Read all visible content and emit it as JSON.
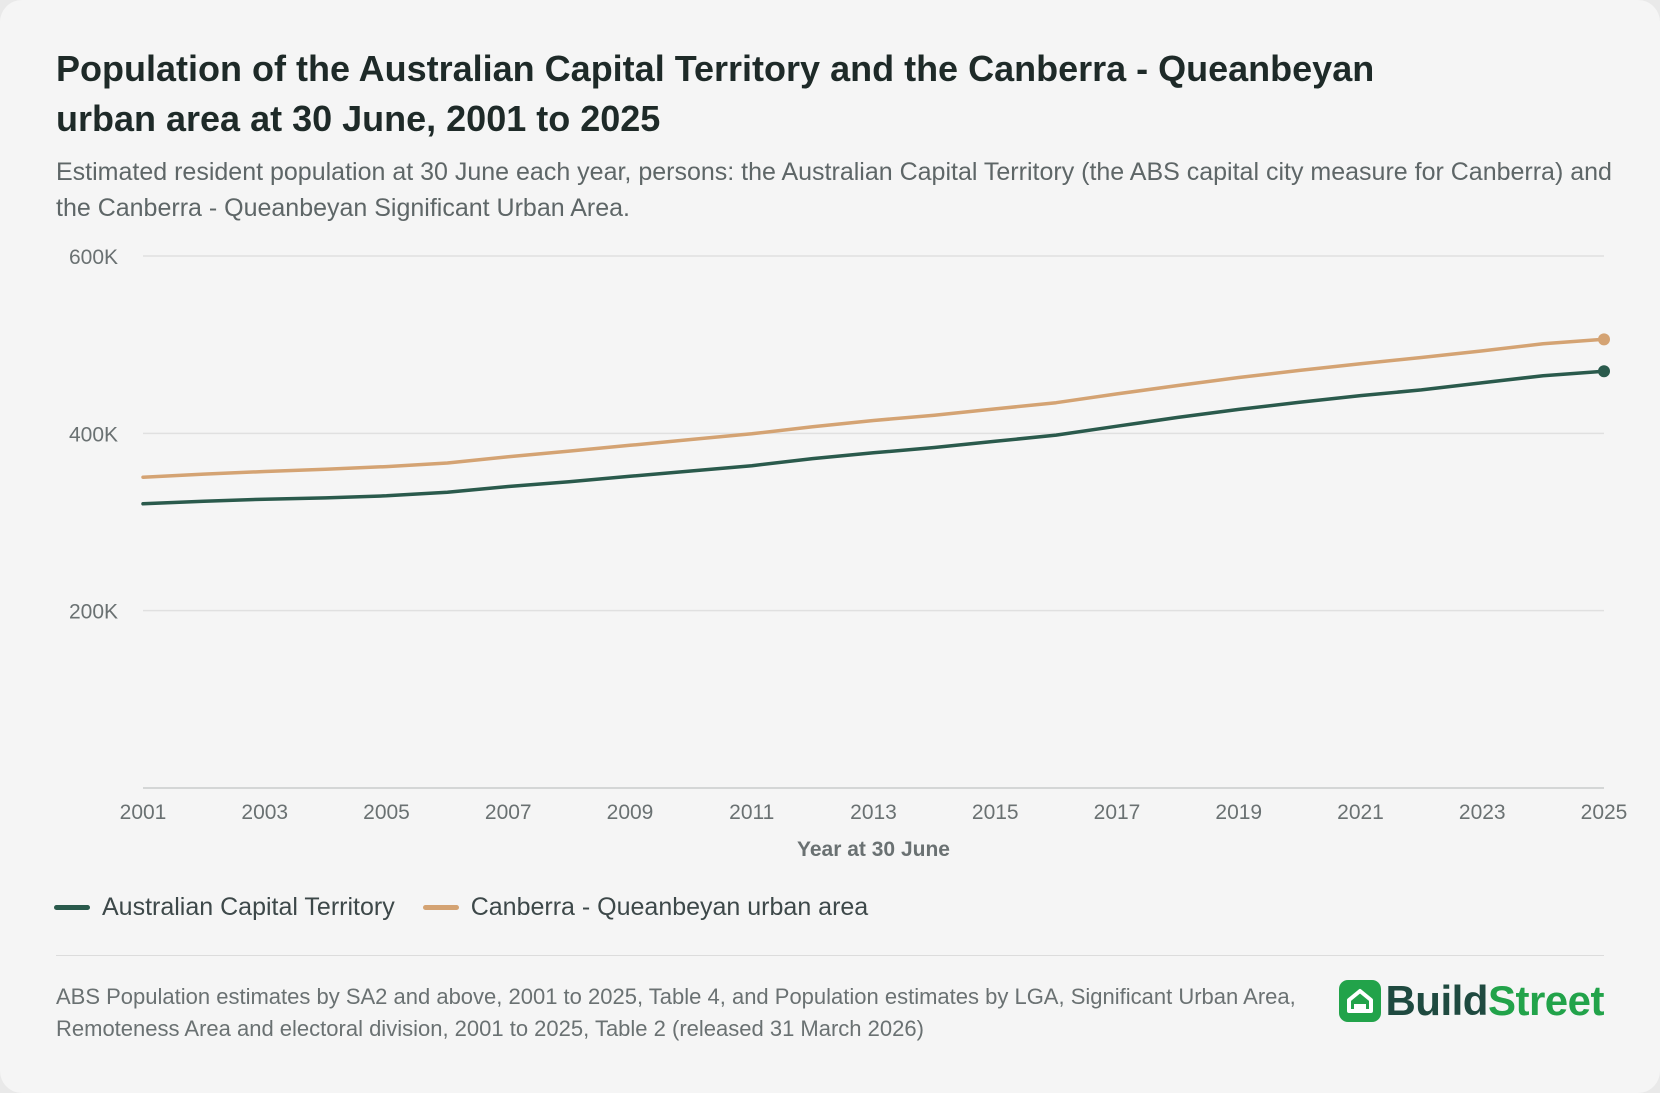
{
  "header": {
    "title": "Population of the Australian Capital Territory and the Canberra - Queanbeyan urban area at 30 June, 2001 to 2025",
    "subtitle": "Estimated resident population at 30 June each year, persons: the Australian Capital Territory (the ABS capital city measure for Canberra) and the Canberra - Queanbeyan Significant Urban Area."
  },
  "chart_data": {
    "type": "line",
    "xlabel": "Year at 30 June",
    "ylabel": "",
    "x": [
      2001,
      2002,
      2003,
      2004,
      2005,
      2006,
      2007,
      2008,
      2009,
      2010,
      2011,
      2012,
      2013,
      2014,
      2015,
      2016,
      2017,
      2018,
      2019,
      2020,
      2021,
      2022,
      2023,
      2024,
      2025
    ],
    "x_ticks": [
      "2001",
      "2003",
      "2005",
      "2007",
      "2009",
      "2011",
      "2013",
      "2015",
      "2017",
      "2019",
      "2021",
      "2023",
      "2025"
    ],
    "ylim": [
      0,
      600000
    ],
    "y_ticks": [
      {
        "value": 200000,
        "label": "200K"
      },
      {
        "value": 400000,
        "label": "400K"
      },
      {
        "value": 600000,
        "label": "600K"
      }
    ],
    "grid": true,
    "legend_position": "bottom-left",
    "series": [
      {
        "name": "Australian Capital Territory",
        "color": "#2a5a4c",
        "values": [
          320500,
          323500,
          325700,
          327200,
          329500,
          333500,
          340000,
          345500,
          351500,
          357500,
          363500,
          371500,
          378000,
          384000,
          391000,
          398000,
          408000,
          418000,
          427000,
          435000,
          442500,
          449000,
          457000,
          465000,
          470000
        ]
      },
      {
        "name": "Canberra - Queanbeyan urban area",
        "color": "#d4a373",
        "values": [
          350500,
          354000,
          357000,
          359500,
          362500,
          366500,
          373500,
          380000,
          386500,
          393000,
          399500,
          407500,
          414500,
          420500,
          427500,
          434500,
          444500,
          454000,
          463000,
          471000,
          478500,
          485500,
          493000,
          501000,
          506000
        ]
      }
    ]
  },
  "legend": {
    "items": [
      {
        "label": "Australian Capital Territory",
        "color": "#2a5a4c"
      },
      {
        "label": "Canberra - Queanbeyan urban area",
        "color": "#d4a373"
      }
    ]
  },
  "footer": {
    "source": "ABS Population estimates by SA2 and above, 2001 to 2025, Table 4, and Population estimates by LGA, Significant Urban Area, Remoteness Area and electoral division, 2001 to 2025, Table 2 (released 31 March 2026)",
    "brand_part1": "Build",
    "brand_part2": "Street",
    "brand_icon": "house-icon",
    "brand_colors": {
      "dark": "#1f4a40",
      "green": "#22a34a"
    }
  }
}
